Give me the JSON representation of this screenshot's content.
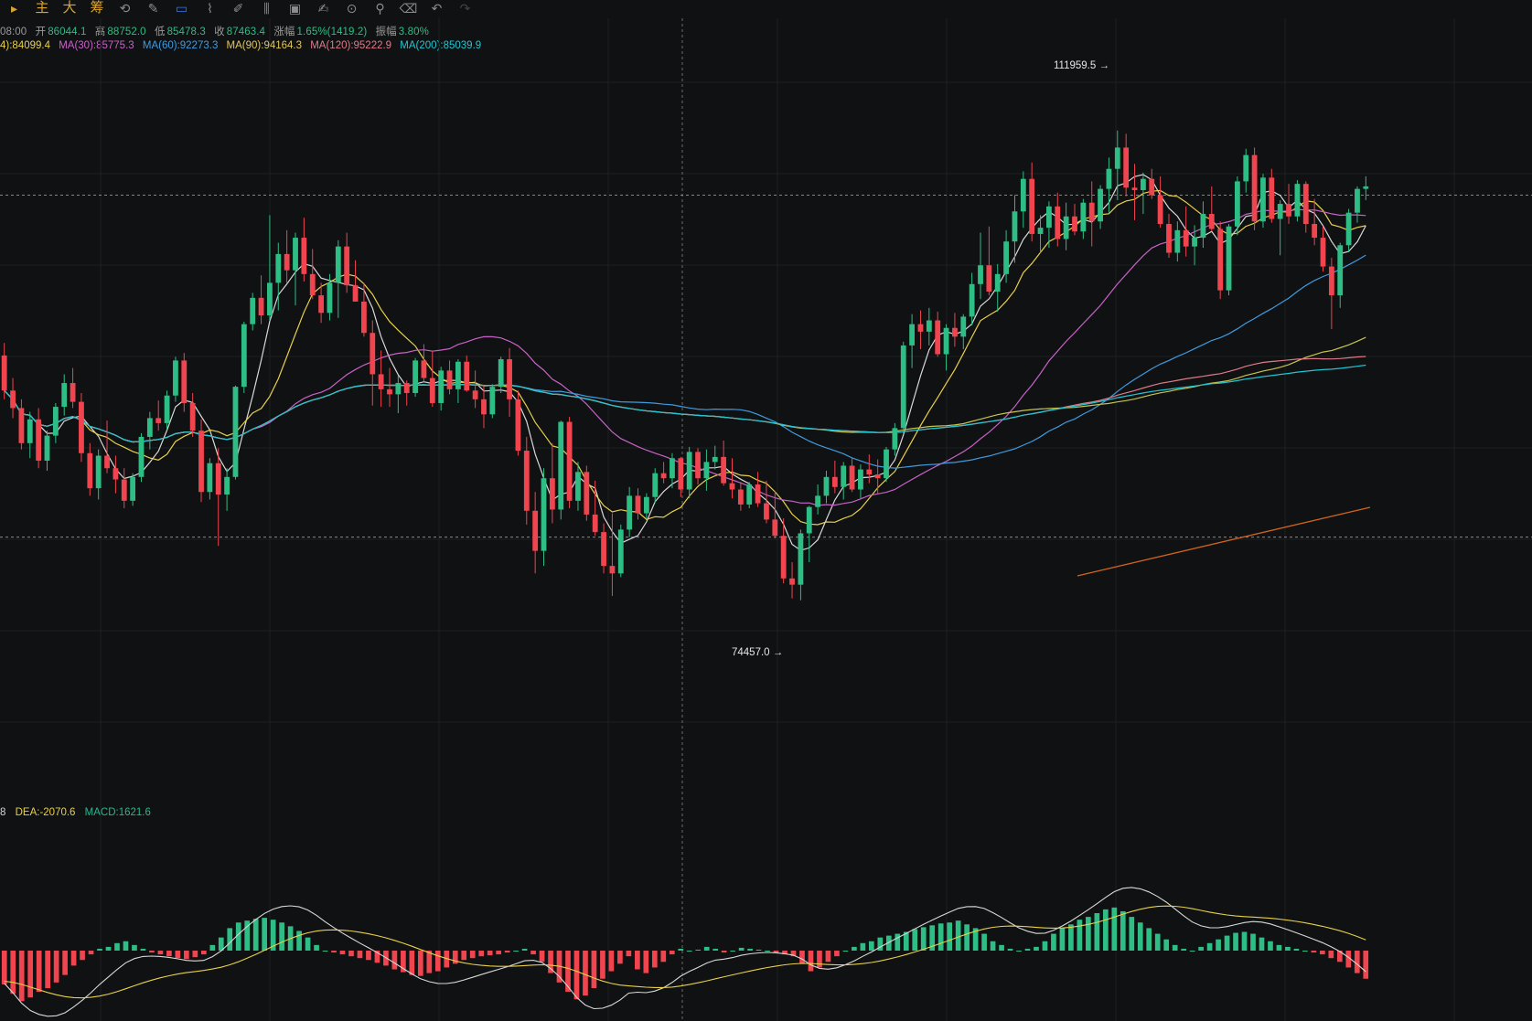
{
  "toolbar": {
    "items": [
      "主",
      "大",
      "筹"
    ],
    "icons": [
      "indicator-icon",
      "draw-tool-icon",
      "cursor-icon",
      "ruler-icon",
      "pen-icon",
      "bar-pattern-icon",
      "calendar-icon",
      "note-icon",
      "magnet-icon",
      "filter-icon",
      "trash-icon",
      "undo-icon",
      "redo-icon"
    ]
  },
  "ohlc": {
    "time": "08:00",
    "open_label": "开",
    "open": "86044.1",
    "high_label": "高",
    "high": "88752.0",
    "low_label": "低",
    "low": "85478.3",
    "close_label": "收",
    "close": "87463.4",
    "change_label": "涨幅",
    "change": "1.65%(1419.2)",
    "amplitude_label": "振幅",
    "amplitude": "3.80%"
  },
  "ma_legend": [
    {
      "text": "4):84099.4",
      "color": "#e8d04a"
    },
    {
      "text": "MA(30):85775.3",
      "color": "#c862c8"
    },
    {
      "text": "MA(60):92273.3",
      "color": "#3f9be0"
    },
    {
      "text": "MA(90):94164.3",
      "color": "#e0c85a"
    },
    {
      "text": "MA(120):95222.9",
      "color": "#e07a8a"
    },
    {
      "text": "MA(200):85039.9",
      "color": "#1fc7d4"
    }
  ],
  "macd_legend": [
    {
      "text": "8",
      "color": "#d6d6d6"
    },
    {
      "text": "DEA:-2070.6",
      "color": "#e8d04a"
    },
    {
      "text": "MACD:1621.6",
      "color": "#27b78f"
    }
  ],
  "chart_data": {
    "type": "candlestick",
    "price_markers": {
      "high": "111959.5 →",
      "low": "74457.0 →"
    },
    "ylim": [
      64000,
      118000
    ],
    "colors": {
      "up": "#2ebd85",
      "down": "#f0444f",
      "background": "#101112"
    },
    "candles_ohlc": [
      [
        94000,
        95000,
        90500,
        91200
      ],
      [
        91200,
        92200,
        89000,
        89800
      ],
      [
        89800,
        90500,
        86500,
        87000
      ],
      [
        87000,
        89500,
        85800,
        88900
      ],
      [
        88900,
        89800,
        85000,
        85600
      ],
      [
        85600,
        88000,
        84800,
        87600
      ],
      [
        87600,
        90200,
        87000,
        89900
      ],
      [
        89900,
        92500,
        89200,
        91800
      ],
      [
        91800,
        93000,
        89800,
        90300
      ],
      [
        90300,
        91000,
        85500,
        86200
      ],
      [
        86200,
        87000,
        82800,
        83400
      ],
      [
        83400,
        86500,
        82500,
        86000
      ],
      [
        86000,
        88800,
        84600,
        85000
      ],
      [
        85000,
        86000,
        83000,
        84100
      ],
      [
        84100,
        85000,
        81800,
        82400
      ],
      [
        82400,
        84600,
        82000,
        84300
      ],
      [
        84300,
        87800,
        83900,
        87500
      ],
      [
        87500,
        89500,
        86500,
        89000
      ],
      [
        89000,
        90400,
        88000,
        88600
      ],
      [
        88600,
        91200,
        88100,
        90800
      ],
      [
        90800,
        93900,
        90300,
        93600
      ],
      [
        93600,
        94200,
        89500,
        90200
      ],
      [
        90200,
        91000,
        87500,
        88000
      ],
      [
        88000,
        88900,
        82300,
        83100
      ],
      [
        83100,
        85800,
        82500,
        85400
      ],
      [
        85400,
        86600,
        78800,
        82900
      ],
      [
        82900,
        85000,
        81600,
        84300
      ],
      [
        84300,
        91600,
        84100,
        91500
      ],
      [
        91500,
        96700,
        91000,
        96500
      ],
      [
        96500,
        99000,
        96000,
        98600
      ],
      [
        98600,
        100400,
        96500,
        97200
      ],
      [
        97200,
        105200,
        96800,
        99800
      ],
      [
        99800,
        103000,
        97600,
        102100
      ],
      [
        102100,
        104000,
        99800,
        100800
      ],
      [
        100800,
        103800,
        98000,
        103400
      ],
      [
        103400,
        105000,
        99900,
        100500
      ],
      [
        100500,
        102500,
        98500,
        98800
      ],
      [
        98800,
        99800,
        96600,
        97400
      ],
      [
        97400,
        100500,
        96800,
        99800
      ],
      [
        99800,
        103200,
        97000,
        102700
      ],
      [
        102700,
        103800,
        99000,
        99600
      ],
      [
        99600,
        101600,
        98500,
        98300
      ],
      [
        98300,
        99800,
        95500,
        95800
      ],
      [
        95800,
        96800,
        90000,
        92500
      ],
      [
        92500,
        94400,
        89900,
        91300
      ],
      [
        91300,
        93000,
        89900,
        90900
      ],
      [
        90900,
        92400,
        89400,
        91800
      ],
      [
        91800,
        92000,
        90000,
        91000
      ],
      [
        91000,
        93800,
        90700,
        93600
      ],
      [
        93600,
        94900,
        91900,
        92200
      ],
      [
        92200,
        94400,
        89900,
        90200
      ],
      [
        90200,
        93100,
        89600,
        92800
      ],
      [
        92800,
        93600,
        90900,
        91300
      ],
      [
        91300,
        93700,
        90200,
        93500
      ],
      [
        93500,
        94000,
        91100,
        91200
      ],
      [
        91200,
        92800,
        89800,
        90500
      ],
      [
        90500,
        91600,
        88200,
        89300
      ],
      [
        89300,
        91700,
        89000,
        91500
      ],
      [
        91500,
        93900,
        91000,
        93700
      ],
      [
        93700,
        94600,
        89100,
        90500
      ],
      [
        90500,
        91200,
        86000,
        86400
      ],
      [
        86400,
        87500,
        80500,
        81600
      ],
      [
        81600,
        83100,
        76600,
        78400
      ],
      [
        78400,
        85000,
        77200,
        84200
      ],
      [
        84200,
        87000,
        80600,
        81700
      ],
      [
        81700,
        88800,
        80900,
        88700
      ],
      [
        88700,
        89100,
        81800,
        82400
      ],
      [
        82400,
        85500,
        81600,
        84700
      ],
      [
        84700,
        85200,
        80800,
        81300
      ],
      [
        81300,
        84000,
        79600,
        79900
      ],
      [
        79900,
        80600,
        76600,
        77200
      ],
      [
        77200,
        81400,
        74800,
        76600
      ],
      [
        76600,
        80500,
        76300,
        80100
      ],
      [
        80100,
        83500,
        79500,
        82800
      ],
      [
        82800,
        83400,
        80900,
        81400
      ],
      [
        81400,
        83000,
        81000,
        82700
      ],
      [
        82700,
        85000,
        82200,
        84600
      ],
      [
        84600,
        85500,
        83800,
        84200
      ],
      [
        84200,
        86200,
        83400,
        85800
      ],
      [
        85800,
        85900,
        82700,
        83300
      ],
      [
        83300,
        86700,
        82600,
        86300
      ],
      [
        86300,
        86600,
        83700,
        84200
      ],
      [
        84200,
        86500,
        83200,
        85500
      ],
      [
        85500,
        86800,
        84900,
        85900
      ],
      [
        85900,
        87200,
        83600,
        83800
      ],
      [
        83800,
        85800,
        82600,
        83300
      ],
      [
        83300,
        83900,
        81600,
        82100
      ],
      [
        82100,
        83900,
        81800,
        83700
      ],
      [
        83700,
        84700,
        81900,
        82200
      ],
      [
        82200,
        84000,
        80600,
        80900
      ],
      [
        80900,
        83200,
        79400,
        79600
      ],
      [
        79600,
        81000,
        75800,
        76200
      ],
      [
        76200,
        77500,
        74600,
        75700
      ],
      [
        75700,
        80100,
        74457,
        79800
      ],
      [
        79800,
        82000,
        77500,
        81900
      ],
      [
        81900,
        83700,
        81300,
        82800
      ],
      [
        82800,
        84800,
        82200,
        84300
      ],
      [
        84300,
        85600,
        83000,
        83500
      ],
      [
        83500,
        85500,
        82500,
        85200
      ],
      [
        85200,
        85800,
        83100,
        83300
      ],
      [
        83300,
        85300,
        82600,
        84900
      ],
      [
        84900,
        86100,
        83800,
        84500
      ],
      [
        84500,
        85700,
        83000,
        84200
      ],
      [
        84200,
        86700,
        83900,
        86500
      ],
      [
        86500,
        88600,
        86000,
        88200
      ],
      [
        88200,
        95100,
        87800,
        94800
      ],
      [
        94800,
        97300,
        93000,
        96500
      ],
      [
        96500,
        97600,
        94500,
        95900
      ],
      [
        95900,
        97800,
        94800,
        96800
      ],
      [
        96800,
        97500,
        93900,
        94100
      ],
      [
        94100,
        96500,
        92800,
        96200
      ],
      [
        96200,
        97400,
        94700,
        95500
      ],
      [
        95500,
        97300,
        94500,
        97100
      ],
      [
        97100,
        100600,
        96400,
        99700
      ],
      [
        99700,
        103800,
        98500,
        101200
      ],
      [
        101200,
        104300,
        98800,
        99100
      ],
      [
        99100,
        101300,
        97500,
        100500
      ],
      [
        100500,
        104000,
        99800,
        103100
      ],
      [
        103100,
        106800,
        101400,
        105500
      ],
      [
        105500,
        108700,
        104200,
        108100
      ],
      [
        108100,
        109400,
        103100,
        103700
      ],
      [
        103700,
        105200,
        102200,
        104200
      ],
      [
        104200,
        106300,
        102600,
        105900
      ],
      [
        105900,
        107000,
        102700,
        103300
      ],
      [
        103300,
        106200,
        102400,
        105100
      ],
      [
        105100,
        106100,
        103600,
        103900
      ],
      [
        103900,
        106500,
        103300,
        106200
      ],
      [
        106200,
        107900,
        102700,
        104700
      ],
      [
        104700,
        107600,
        104100,
        107300
      ],
      [
        107300,
        109800,
        105400,
        108900
      ],
      [
        108900,
        111959,
        106400,
        110600
      ],
      [
        110600,
        111700,
        106700,
        107400
      ],
      [
        107400,
        109300,
        104800,
        107200
      ],
      [
        107200,
        108600,
        105300,
        108100
      ],
      [
        108100,
        108900,
        106500,
        106800
      ],
      [
        106800,
        108300,
        104200,
        104500
      ],
      [
        104500,
        105300,
        101800,
        102200
      ],
      [
        102200,
        104700,
        101500,
        104000
      ],
      [
        104000,
        105900,
        101900,
        102700
      ],
      [
        102700,
        104400,
        101200,
        103400
      ],
      [
        103400,
        106300,
        102600,
        105300
      ],
      [
        105300,
        107500,
        103900,
        104100
      ],
      [
        104100,
        104700,
        98500,
        99200
      ],
      [
        99200,
        104500,
        98800,
        104300
      ],
      [
        104300,
        108300,
        103600,
        107900
      ],
      [
        107900,
        110500,
        107000,
        110000
      ],
      [
        110000,
        110600,
        104000,
        104700
      ],
      [
        104700,
        108500,
        104200,
        108200
      ],
      [
        108200,
        108900,
        104600,
        104900
      ],
      [
        104900,
        106400,
        102000,
        106100
      ],
      [
        106100,
        107700,
        104500,
        105100
      ],
      [
        105100,
        108000,
        104700,
        107700
      ],
      [
        107700,
        107900,
        103800,
        104500
      ],
      [
        104500,
        106500,
        102800,
        103400
      ],
      [
        103400,
        104300,
        100700,
        101100
      ],
      [
        101100,
        101800,
        96100,
        98800
      ],
      [
        98800,
        103000,
        97800,
        102800
      ],
      [
        102800,
        105700,
        102300,
        105400
      ],
      [
        105400,
        107500,
        104600,
        107300
      ],
      [
        107300,
        108300,
        106400,
        107500
      ]
    ],
    "macd_hist": [
      -1800,
      -2300,
      -2700,
      -2500,
      -2200,
      -2000,
      -1700,
      -1300,
      -800,
      -500,
      -200,
      100,
      200,
      400,
      500,
      300,
      100,
      -100,
      -200,
      -300,
      -400,
      -450,
      -350,
      -200,
      300,
      700,
      1200,
      1500,
      1600,
      1700,
      1750,
      1650,
      1500,
      1300,
      1050,
      700,
      300,
      0,
      -100,
      -200,
      -300,
      -400,
      -500,
      -650,
      -800,
      -1000,
      -1150,
      -1300,
      -1350,
      -1200,
      -1100,
      -900,
      -700,
      -500,
      -400,
      -300,
      -250,
      -200,
      -100,
      0,
      100,
      -200,
      -600,
      -1200,
      -1700,
      -2200,
      -2600,
      -2400,
      -2000,
      -1500,
      -1100,
      -700,
      -300,
      -1000,
      -1200,
      -900,
      -600,
      -200,
      100,
      0,
      50,
      200,
      100,
      -100,
      0,
      150,
      100,
      50,
      0,
      -100,
      -200,
      -300,
      -700,
      -1100,
      -900,
      -600,
      -300,
      0,
      200,
      400,
      500,
      700,
      800,
      900,
      1000,
      1150,
      1250,
      1350,
      1450,
      1500,
      1600,
      1400,
      1200,
      900,
      500,
      300,
      100,
      0,
      100,
      200,
      500,
      900,
      1200,
      1400,
      1650,
      1800,
      2000,
      2200,
      2300,
      2100,
      1800,
      1500,
      1200,
      900,
      600,
      300,
      100,
      0,
      200,
      400,
      600,
      800,
      950,
      1000,
      900,
      700,
      500,
      300,
      200,
      100,
      0,
      -100,
      -200,
      -400,
      -600,
      -900,
      -1200,
      -1500
    ]
  }
}
